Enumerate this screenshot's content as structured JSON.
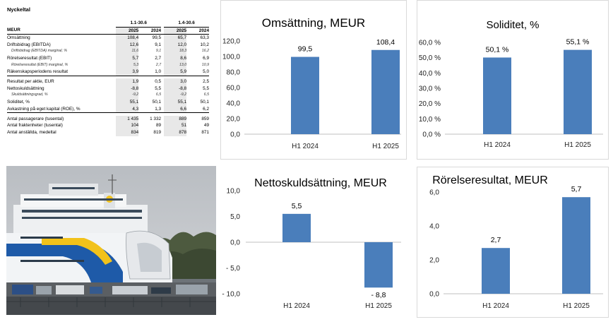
{
  "keyfigures": {
    "title": "Nyckeltal",
    "unit_label": "MEUR",
    "periods": [
      "1.1-30.6",
      "1.4-30.6"
    ],
    "years": [
      "2025",
      "2024",
      "2025",
      "2024"
    ],
    "rows": [
      {
        "label": "Omsättning",
        "values": [
          "108,4",
          "99,5",
          "65,7",
          "63,3"
        ],
        "style": "normal"
      },
      {
        "label": "Driftsbidrag (EBITDA)",
        "values": [
          "12,6",
          "9,1",
          "12,0",
          "10,2"
        ],
        "style": "normal"
      },
      {
        "label": "Driftsbidrag (EBITDA) marginal, %",
        "values": [
          "11,6",
          "9,1",
          "18,3",
          "16,2"
        ],
        "style": "italic"
      },
      {
        "label": "Rörelseresultat (EBIT)",
        "values": [
          "5,7",
          "2,7",
          "8,6",
          "6,9"
        ],
        "style": "normal"
      },
      {
        "label": "Rörelseresultat (EBIT) marginal, %",
        "values": [
          "5,3",
          "2,7",
          "13,0",
          "10,9"
        ],
        "style": "italic"
      },
      {
        "label": "Räkenskapsperiodens resultat",
        "values": [
          "3,9",
          "1,0",
          "5,9",
          "5,0"
        ],
        "style": "normal",
        "sep": true
      },
      {
        "label": "Resultat per aktie, EUR",
        "values": [
          "1,9",
          "0,5",
          "3,0",
          "2,5"
        ],
        "style": "normal"
      },
      {
        "label": "Nettoskuldsättning",
        "values": [
          "-8,8",
          "5,5",
          "-8,8",
          "5,5"
        ],
        "style": "normal"
      },
      {
        "label": "Skuldsättningsgrad, %",
        "values": [
          "-9,2",
          "6,5",
          "-9,2",
          "6,5"
        ],
        "style": "italic"
      },
      {
        "label": "Soliditet, %",
        "values": [
          "55,1",
          "50,1",
          "55,1",
          "50,1"
        ],
        "style": "normal"
      },
      {
        "label": "Avkastning på eget kapital (ROE), %",
        "values": [
          "4,3",
          "1,3",
          "6,6",
          "6,2"
        ],
        "style": "normal",
        "sep": true
      },
      {
        "label": "Antal passagerare (tusental)",
        "values": [
          "1 435",
          "1 332",
          "889",
          "859"
        ],
        "style": "normal"
      },
      {
        "label": "Antal fraktenheter (tusental)",
        "values": [
          "104",
          "89",
          "51",
          "49"
        ],
        "style": "normal"
      },
      {
        "label": "Antal anställda, medeltal",
        "values": [
          "834",
          "819",
          "878",
          "871"
        ],
        "style": "normal"
      }
    ]
  },
  "chart_data": [
    {
      "id": "omsattning",
      "type": "bar",
      "title": "Omsättning, MEUR",
      "categories": [
        "H1 2024",
        "H1 2025"
      ],
      "values": [
        99.5,
        108.4
      ],
      "value_labels": [
        "99,5",
        "108,4"
      ],
      "ylim": [
        0,
        120
      ],
      "ytick_values": [
        0,
        20,
        40,
        60,
        80,
        100,
        120
      ],
      "ytick_labels": [
        "0,0",
        "20,0",
        "40,0",
        "60,0",
        "80,0",
        "100,0",
        "120,0"
      ],
      "grid": false,
      "bar_color": "#4a7ebb"
    },
    {
      "id": "soliditet",
      "type": "bar",
      "title": "Soliditet, %",
      "categories": [
        "H1 2024",
        "H1 2025"
      ],
      "values": [
        50.1,
        55.1
      ],
      "value_labels": [
        "50,1 %",
        "55,1 %"
      ],
      "ylim": [
        0,
        60
      ],
      "ytick_values": [
        0,
        10,
        20,
        30,
        40,
        50,
        60
      ],
      "ytick_labels": [
        "0,0 %",
        "10,0 %",
        "20,0 %",
        "30,0 %",
        "40,0 %",
        "50,0 %",
        "60,0 %"
      ],
      "grid": false,
      "bar_color": "#4a7ebb"
    },
    {
      "id": "nettoskuld",
      "type": "bar",
      "title": "Nettoskuldsättning, MEUR",
      "categories": [
        "H1 2024",
        "H1 2025"
      ],
      "values": [
        5.5,
        -8.8
      ],
      "value_labels": [
        "5,5",
        "- 8,8"
      ],
      "ylim": [
        -10,
        10
      ],
      "ytick_values": [
        10,
        5,
        0,
        -5,
        -10
      ],
      "ytick_labels": [
        "10,0",
        "5,0",
        "0,0",
        "- 5,0",
        "- 10,0"
      ],
      "grid": false,
      "bar_color": "#4a7ebb"
    },
    {
      "id": "rorelseresultat",
      "type": "bar",
      "title": "Rörelseresultat, MEUR",
      "categories": [
        "H1 2024",
        "H1 2025"
      ],
      "values": [
        2.7,
        5.7
      ],
      "value_labels": [
        "2,7",
        "5,7"
      ],
      "ylim": [
        0,
        6
      ],
      "ytick_values": [
        0,
        2,
        4,
        6
      ],
      "ytick_labels": [
        "0,0",
        "2,0",
        "4,0",
        "6,0"
      ],
      "grid": false,
      "bar_color": "#4a7ebb"
    }
  ],
  "photo": {
    "subject": "ferry-at-dock",
    "colors": {
      "sky": "#c9ccd0",
      "hull": "#f2f4f6",
      "stripe_blue": "#1e5aa8",
      "stripe_yellow": "#f2c21b",
      "water": "#6d7378",
      "trees": "#4d5a3f"
    }
  }
}
